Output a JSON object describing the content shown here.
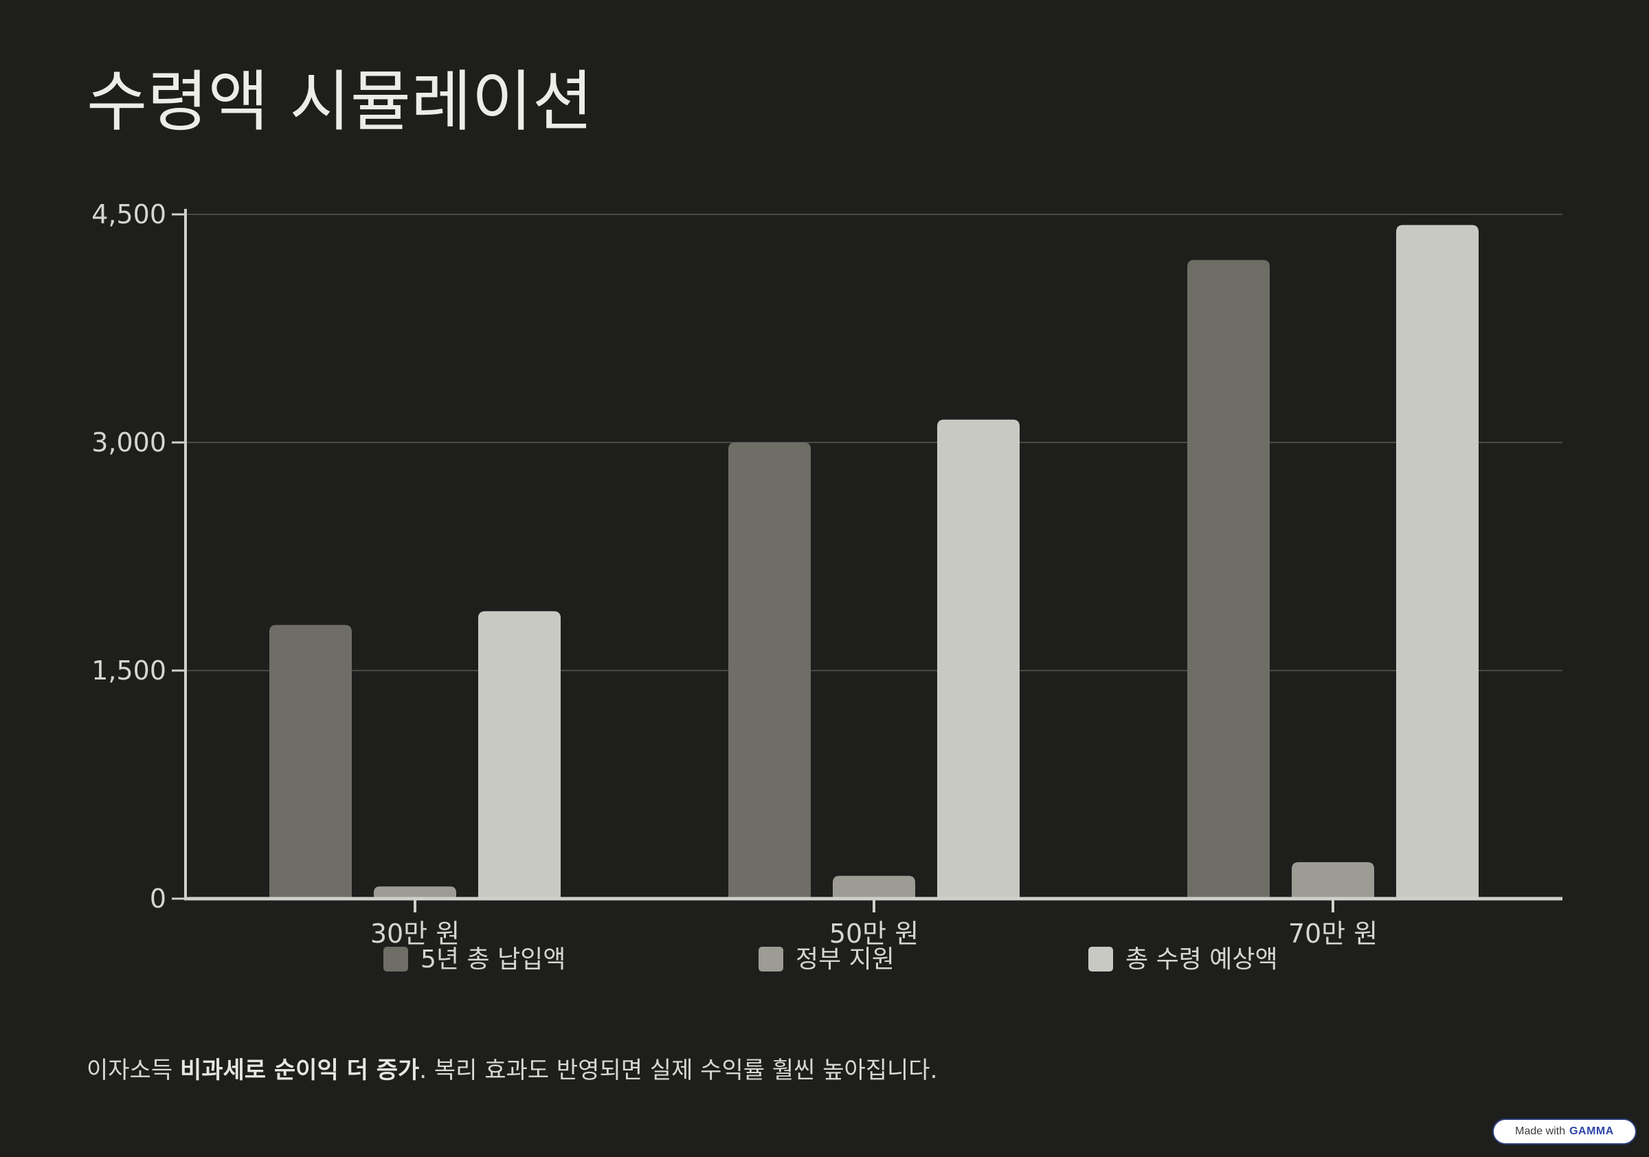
{
  "title": "수령액 시뮬레이션",
  "chart_data": {
    "type": "bar",
    "categories": [
      "30만 원",
      "50만 원",
      "70만 원"
    ],
    "series": [
      {
        "name": "5년 총 납입액",
        "values": [
          1800,
          3000,
          4200
        ]
      },
      {
        "name": "정부 지원",
        "values": [
          80,
          150,
          240
        ]
      },
      {
        "name": "총 수령 예상액",
        "values": [
          1890,
          3150,
          4430
        ]
      }
    ],
    "yticks": [
      0,
      1500,
      3000,
      4500
    ],
    "ytick_labels": [
      "0",
      "1,500",
      "3,000",
      "4,500"
    ],
    "ylim": [
      0,
      4500
    ],
    "grid": true,
    "legend_placement": "bottom",
    "colors": [
      "#6e6e66",
      "#9c9c95",
      "#c9c9c4"
    ]
  },
  "footnote": {
    "prefix": "이자소득 ",
    "bold": "비과세로 순이익 더 증가",
    "suffix": ". 복리 효과도 반영되면 실제 수익률 훨씬 높아집니다."
  },
  "badge": {
    "made_with": "Made with",
    "brand": "GAMMA"
  }
}
